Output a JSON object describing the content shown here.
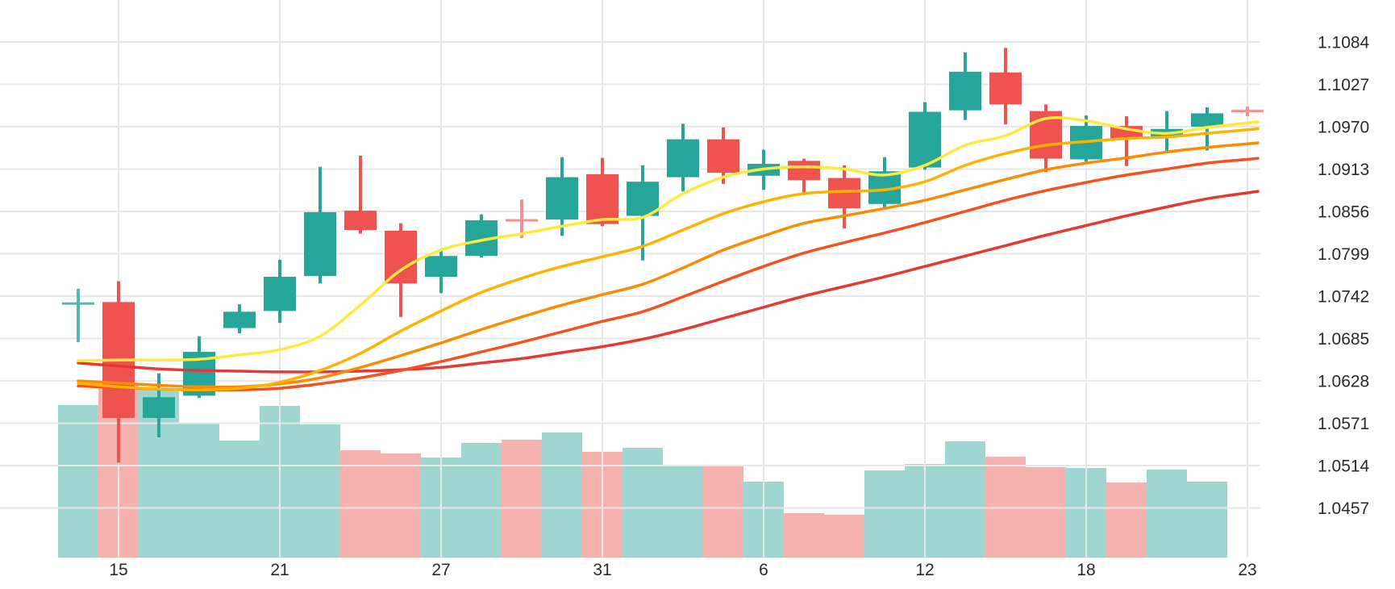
{
  "chart_data": {
    "type": "candlestick",
    "title": "",
    "grid": true,
    "legend": false,
    "background": "#ffffff",
    "y_axis": {
      "side": "right",
      "top_value": 1.1084,
      "step": 0.0057,
      "labels": [
        "1.1084",
        "1.1027",
        "1.0970",
        "1.0913",
        "1.0856",
        "1.0799",
        "1.0742",
        "1.0685",
        "1.0628",
        "1.0571",
        "1.0514",
        "1.0457"
      ]
    },
    "x_axis": {
      "ticks": [
        {
          "label": "15",
          "candle_index": 1
        },
        {
          "label": "21",
          "candle_index": 5
        },
        {
          "label": "27",
          "candle_index": 9
        },
        {
          "label": "31",
          "candle_index": 13
        },
        {
          "label": "6",
          "candle_index": 17
        },
        {
          "label": "12",
          "candle_index": 21
        },
        {
          "label": "18",
          "candle_index": 25
        },
        {
          "label": "23",
          "candle_index": 29
        }
      ]
    },
    "volume_scale": "relative units (chart has no volume axis labels)",
    "candles": [
      {
        "o": 1.0732,
        "h": 1.0752,
        "l": 1.068,
        "c": 1.0732,
        "dir": "up",
        "vol": 189,
        "soft": true
      },
      {
        "o": 1.0734,
        "h": 1.0762,
        "l": 1.0518,
        "c": 1.0578,
        "dir": "down",
        "vol": 214
      },
      {
        "o": 1.0578,
        "h": 1.0638,
        "l": 1.0552,
        "c": 1.0606,
        "dir": "up",
        "vol": 210
      },
      {
        "o": 1.0608,
        "h": 1.0688,
        "l": 1.0605,
        "c": 1.0667,
        "dir": "up",
        "vol": 167
      },
      {
        "o": 1.0699,
        "h": 1.0731,
        "l": 1.0692,
        "c": 1.0721,
        "dir": "up",
        "vol": 145
      },
      {
        "o": 1.0722,
        "h": 1.0791,
        "l": 1.0706,
        "c": 1.0768,
        "dir": "up",
        "vol": 188
      },
      {
        "o": 1.0769,
        "h": 1.0916,
        "l": 1.0759,
        "c": 1.0855,
        "dir": "up",
        "vol": 165
      },
      {
        "o": 1.0857,
        "h": 1.0931,
        "l": 1.0826,
        "c": 1.0831,
        "dir": "down",
        "vol": 133
      },
      {
        "o": 1.083,
        "h": 1.084,
        "l": 1.0714,
        "c": 1.0759,
        "dir": "down",
        "vol": 129
      },
      {
        "o": 1.0768,
        "h": 1.0803,
        "l": 1.0746,
        "c": 1.0796,
        "dir": "up",
        "vol": 124
      },
      {
        "o": 1.0796,
        "h": 1.0852,
        "l": 1.0794,
        "c": 1.0844,
        "dir": "up",
        "vol": 142
      },
      {
        "o": 1.0844,
        "h": 1.0872,
        "l": 1.082,
        "c": 1.0844,
        "dir": "down",
        "vol": 146,
        "soft": true
      },
      {
        "o": 1.0845,
        "h": 1.0929,
        "l": 1.0823,
        "c": 1.0902,
        "dir": "up",
        "vol": 155
      },
      {
        "o": 1.0906,
        "h": 1.0928,
        "l": 1.0836,
        "c": 1.0839,
        "dir": "down",
        "vol": 131
      },
      {
        "o": 1.085,
        "h": 1.0918,
        "l": 1.079,
        "c": 1.0896,
        "dir": "up",
        "vol": 136
      },
      {
        "o": 1.0902,
        "h": 1.0974,
        "l": 1.0883,
        "c": 1.0953,
        "dir": "up",
        "vol": 115
      },
      {
        "o": 1.0953,
        "h": 1.0969,
        "l": 1.0893,
        "c": 1.0908,
        "dir": "down",
        "vol": 115
      },
      {
        "o": 1.0904,
        "h": 1.0939,
        "l": 1.0885,
        "c": 1.092,
        "dir": "up",
        "vol": 94
      },
      {
        "o": 1.0924,
        "h": 1.0927,
        "l": 1.0878,
        "c": 1.0898,
        "dir": "down",
        "vol": 55
      },
      {
        "o": 1.0901,
        "h": 1.0918,
        "l": 1.0833,
        "c": 1.086,
        "dir": "down",
        "vol": 53
      },
      {
        "o": 1.0866,
        "h": 1.0929,
        "l": 1.0858,
        "c": 1.091,
        "dir": "up",
        "vol": 108
      },
      {
        "o": 1.0915,
        "h": 1.1003,
        "l": 1.0912,
        "c": 1.099,
        "dir": "up",
        "vol": 116
      },
      {
        "o": 1.0992,
        "h": 1.107,
        "l": 1.0979,
        "c": 1.1044,
        "dir": "up",
        "vol": 144
      },
      {
        "o": 1.1043,
        "h": 1.1076,
        "l": 1.0973,
        "c": 1.1,
        "dir": "down",
        "vol": 125
      },
      {
        "o": 1.0991,
        "h": 1.1,
        "l": 1.0909,
        "c": 1.0927,
        "dir": "down",
        "vol": 112
      },
      {
        "o": 1.0926,
        "h": 1.0985,
        "l": 1.0923,
        "c": 1.0971,
        "dir": "up",
        "vol": 111
      },
      {
        "o": 1.0971,
        "h": 1.0984,
        "l": 1.0917,
        "c": 1.0954,
        "dir": "down",
        "vol": 93
      },
      {
        "o": 1.0956,
        "h": 1.0991,
        "l": 1.0934,
        "c": 1.0967,
        "dir": "up",
        "vol": 109
      },
      {
        "o": 1.097,
        "h": 1.0996,
        "l": 1.0938,
        "c": 1.0988,
        "dir": "up",
        "vol": 94
      },
      {
        "o": 1.0991,
        "h": 1.0997,
        "l": 1.0984,
        "c": 1.0991,
        "dir": "down",
        "vol": 0,
        "soft": true
      }
    ],
    "ma_lines": [
      {
        "name": "ma-slowest-red",
        "color": "#e53935",
        "values": [
          1.0652,
          1.0648,
          1.0644,
          1.0642,
          1.0641,
          1.064,
          1.064,
          1.0641,
          1.0643,
          1.0646,
          1.0652,
          1.0658,
          1.0666,
          1.0674,
          1.0684,
          1.0697,
          1.0712,
          1.0727,
          1.0742,
          1.0755,
          1.0768,
          1.0782,
          1.0796,
          1.081,
          1.0824,
          1.0837,
          1.085,
          1.0862,
          1.0873,
          1.0881
        ]
      },
      {
        "name": "ma-slow-deep-orange",
        "color": "#f4511e",
        "values": [
          1.0621,
          1.0619,
          1.0617,
          1.0616,
          1.0616,
          1.0618,
          1.0624,
          1.0632,
          1.0642,
          1.0654,
          1.0667,
          1.068,
          1.0694,
          1.0708,
          1.0721,
          1.0741,
          1.0762,
          1.0782,
          1.08,
          1.0814,
          1.0827,
          1.0841,
          1.0856,
          1.0871,
          1.0884,
          1.0895,
          1.0905,
          1.0913,
          1.0921,
          1.0926
        ]
      },
      {
        "name": "ma-mid-orange",
        "color": "#fb8c00",
        "values": [
          1.0628,
          1.0625,
          1.0622,
          1.062,
          1.062,
          1.0624,
          1.0632,
          1.0646,
          1.0662,
          1.0679,
          1.0697,
          1.0714,
          1.073,
          1.0744,
          1.0758,
          1.078,
          1.0804,
          1.0823,
          1.084,
          1.085,
          1.086,
          1.0871,
          1.0885,
          1.0899,
          1.0912,
          1.0921,
          1.0928,
          1.0936,
          1.0942,
          1.0947
        ]
      },
      {
        "name": "ma-fast-amber",
        "color": "#ffb300",
        "values": [
          1.0625,
          1.062,
          1.0617,
          1.0616,
          1.0618,
          1.0626,
          1.0642,
          1.0665,
          1.0695,
          1.0722,
          1.0747,
          1.0766,
          1.0782,
          1.0795,
          1.0809,
          1.0831,
          1.0853,
          1.0869,
          1.088,
          1.0883,
          1.0885,
          1.0896,
          1.0918,
          1.0934,
          1.0945,
          1.095,
          1.0954,
          1.0956,
          1.0961,
          1.0966
        ]
      },
      {
        "name": "ma-fastest-yellow",
        "color": "#fdea3d",
        "values": [
          1.0655,
          1.0656,
          1.0656,
          1.0657,
          1.0663,
          1.067,
          1.0688,
          1.073,
          1.0777,
          1.0804,
          1.0817,
          1.0826,
          1.0836,
          1.0845,
          1.0848,
          1.088,
          1.0902,
          1.0913,
          1.0916,
          1.0913,
          1.0905,
          1.0918,
          1.0945,
          1.0958,
          1.0981,
          1.0978,
          1.0967,
          1.0961,
          1.0969,
          1.0975
        ]
      }
    ],
    "colors": {
      "up": "#26a69a",
      "down": "#ef5350",
      "up_soft": "#53b8ae",
      "down_soft": "#f2918d",
      "volume_up": "#9fd6d1",
      "volume_down": "#f5b2ae",
      "grid": "#e7e7e7",
      "label": "#2a2a2a"
    }
  }
}
